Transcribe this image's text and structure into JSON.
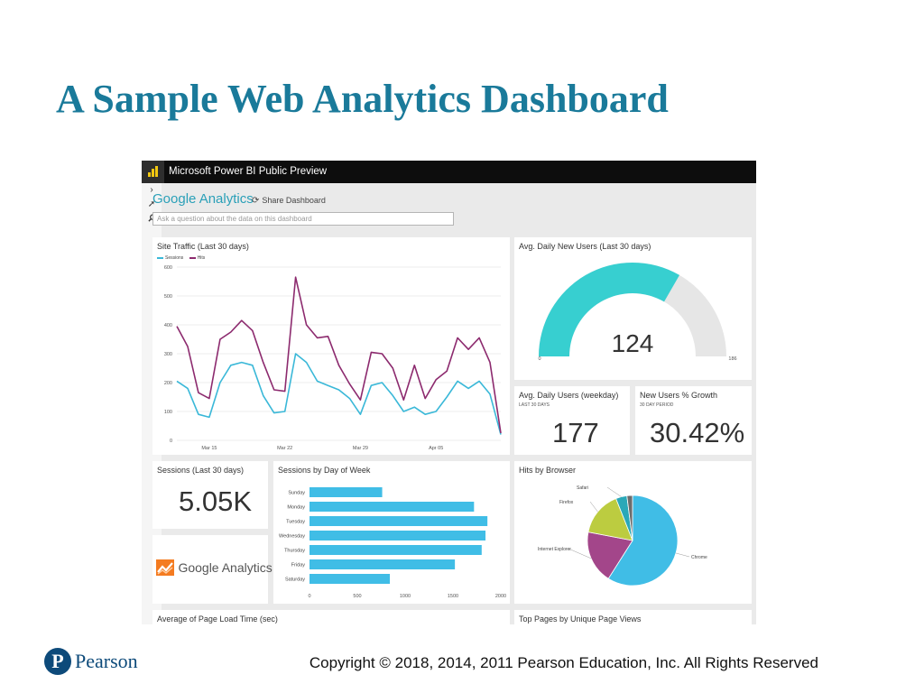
{
  "slide": {
    "title": "A Sample Web Analytics Dashboard"
  },
  "app": {
    "title": "Microsoft Power BI Public Preview"
  },
  "dashboard": {
    "name": "Google Analytics",
    "share_label": "Share Dashboard",
    "qa_placeholder": "Ask a question about the data on this dashboard",
    "rail_icons": [
      "chevron-right-icon",
      "expand-arrow-icon",
      "search-icon"
    ]
  },
  "tiles": {
    "site_traffic": {
      "title": "Site Traffic (Last 30 days)"
    },
    "new_users": {
      "title": "Avg. Daily New Users (Last 30 days)"
    },
    "avg_daily": {
      "title": "Avg. Daily Users (weekday)",
      "subtitle": "LAST 30 DAYS",
      "value": "177"
    },
    "growth": {
      "title": "New Users % Growth",
      "subtitle": "30 DAY PERIOD",
      "value": "30.42%"
    },
    "sessions": {
      "title": "Sessions (Last 30 days)",
      "value": "5.05K"
    },
    "ga_logo": {
      "text": "Google Analytics"
    },
    "sessions_dow": {
      "title": "Sessions by Day of Week"
    },
    "browser": {
      "title": "Hits by Browser"
    },
    "page_load": {
      "title": "Average of Page Load Time (sec)"
    },
    "top_pages": {
      "title": "Top Pages by Unique Page Views"
    }
  },
  "colors": {
    "sessions": "#3ab8d8",
    "hits": "#8c2a6e",
    "gauge": "#37cfd0",
    "gauge_track": "#e6e6e6",
    "bars": "#40bde6",
    "title": "#1a7a9a"
  },
  "chart_data": [
    {
      "type": "line",
      "title": "Site Traffic (Last 30 days)",
      "x_tick_labels": [
        "Mar 15",
        "Mar 22",
        "Mar 29",
        "Apr 05"
      ],
      "x_tick_index": [
        3,
        10,
        17,
        24
      ],
      "ylim": [
        0,
        600
      ],
      "y_ticks": [
        0,
        100,
        200,
        300,
        400,
        500,
        600
      ],
      "grid": true,
      "legend": "top-left",
      "series": [
        {
          "name": "Sessions",
          "values": [
            205,
            180,
            90,
            80,
            200,
            260,
            270,
            260,
            155,
            95,
            100,
            300,
            270,
            205,
            190,
            175,
            145,
            90,
            190,
            200,
            155,
            100,
            115,
            90,
            100,
            150,
            205,
            180,
            205,
            160,
            20
          ]
        },
        {
          "name": "Hits",
          "values": [
            395,
            325,
            165,
            145,
            350,
            375,
            415,
            380,
            270,
            175,
            170,
            565,
            400,
            355,
            360,
            260,
            195,
            140,
            305,
            300,
            250,
            140,
            260,
            145,
            210,
            240,
            355,
            315,
            355,
            270,
            25
          ]
        }
      ]
    },
    {
      "type": "gauge",
      "title": "Avg. Daily New Users (Last 30 days)",
      "value": 124,
      "value_label": "124",
      "min": 0,
      "max": 186,
      "min_label": "0",
      "max_label": "186"
    },
    {
      "type": "bar",
      "orientation": "horizontal",
      "title": "Sessions by Day of Week",
      "categories": [
        "Sunday",
        "Monday",
        "Tuesday",
        "Wednesday",
        "Thursday",
        "Friday",
        "Saturday"
      ],
      "values": [
        760,
        1720,
        1860,
        1840,
        1800,
        1520,
        840
      ],
      "xlim": [
        0,
        2000
      ],
      "x_ticks": [
        0,
        500,
        1000,
        1500,
        2000
      ]
    },
    {
      "type": "pie",
      "title": "Hits by Browser",
      "slices": [
        {
          "label": "Chrome",
          "value": 59,
          "color": "#40bde6"
        },
        {
          "label": "Internet Explorer",
          "value": 19,
          "color": "#a3468a"
        },
        {
          "label": "Firefox",
          "value": 16,
          "color": "#bccc40"
        },
        {
          "label": "Safari",
          "value": 4,
          "color": "#2aa8b8"
        },
        {
          "label": "",
          "value": 2,
          "color": "#6c6c6c"
        }
      ]
    }
  ],
  "footer": {
    "copyright": "Copyright © 2018, 2014, 2011 Pearson Education, Inc. All Rights Reserved",
    "publisher": "Pearson",
    "publisher_mark": "P"
  }
}
